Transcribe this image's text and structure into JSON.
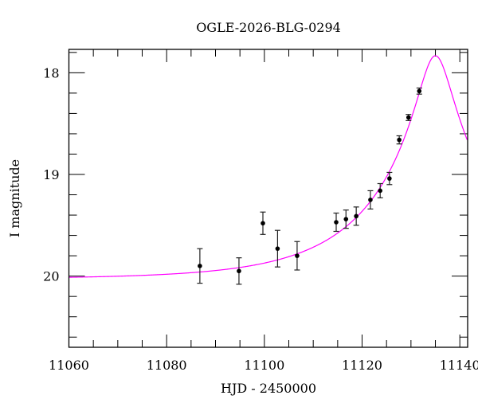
{
  "chart_data": {
    "type": "scatter",
    "title": "OGLE-2026-BLG-0294",
    "xlabel": "HJD - 2450000",
    "ylabel": "I magnitude",
    "xlim": [
      11060,
      11141.6
    ],
    "ylim": [
      20.7,
      17.77
    ],
    "y_inverted": true,
    "x_ticks": [
      11060,
      11080,
      11100,
      11120,
      11140
    ],
    "x_minor_step": 5,
    "y_ticks": [
      18,
      19,
      20
    ],
    "y_minor_step": 0.2,
    "grid": false,
    "points": [
      {
        "x": 11086.8,
        "y": 19.9,
        "err": 0.17
      },
      {
        "x": 11094.8,
        "y": 19.95,
        "err": 0.13
      },
      {
        "x": 11099.7,
        "y": 19.48,
        "err": 0.11
      },
      {
        "x": 11102.7,
        "y": 19.73,
        "err": 0.18
      },
      {
        "x": 11106.7,
        "y": 19.8,
        "err": 0.14
      },
      {
        "x": 11114.7,
        "y": 19.47,
        "err": 0.09
      },
      {
        "x": 11116.7,
        "y": 19.44,
        "err": 0.09
      },
      {
        "x": 11118.8,
        "y": 19.41,
        "err": 0.09
      },
      {
        "x": 11121.7,
        "y": 19.25,
        "err": 0.09
      },
      {
        "x": 11123.7,
        "y": 19.16,
        "err": 0.07
      },
      {
        "x": 11125.6,
        "y": 19.04,
        "err": 0.06
      },
      {
        "x": 11127.6,
        "y": 18.66,
        "err": 0.04
      },
      {
        "x": 11129.5,
        "y": 18.44,
        "err": 0.03
      },
      {
        "x": 11131.7,
        "y": 18.18,
        "err": 0.03
      }
    ],
    "model": {
      "t0": 11135.0,
      "u0": 0.133,
      "tE": 25.0,
      "baseline_mag": 20.03
    },
    "colors": {
      "points": "#000000",
      "model": "#ff00ff"
    }
  }
}
